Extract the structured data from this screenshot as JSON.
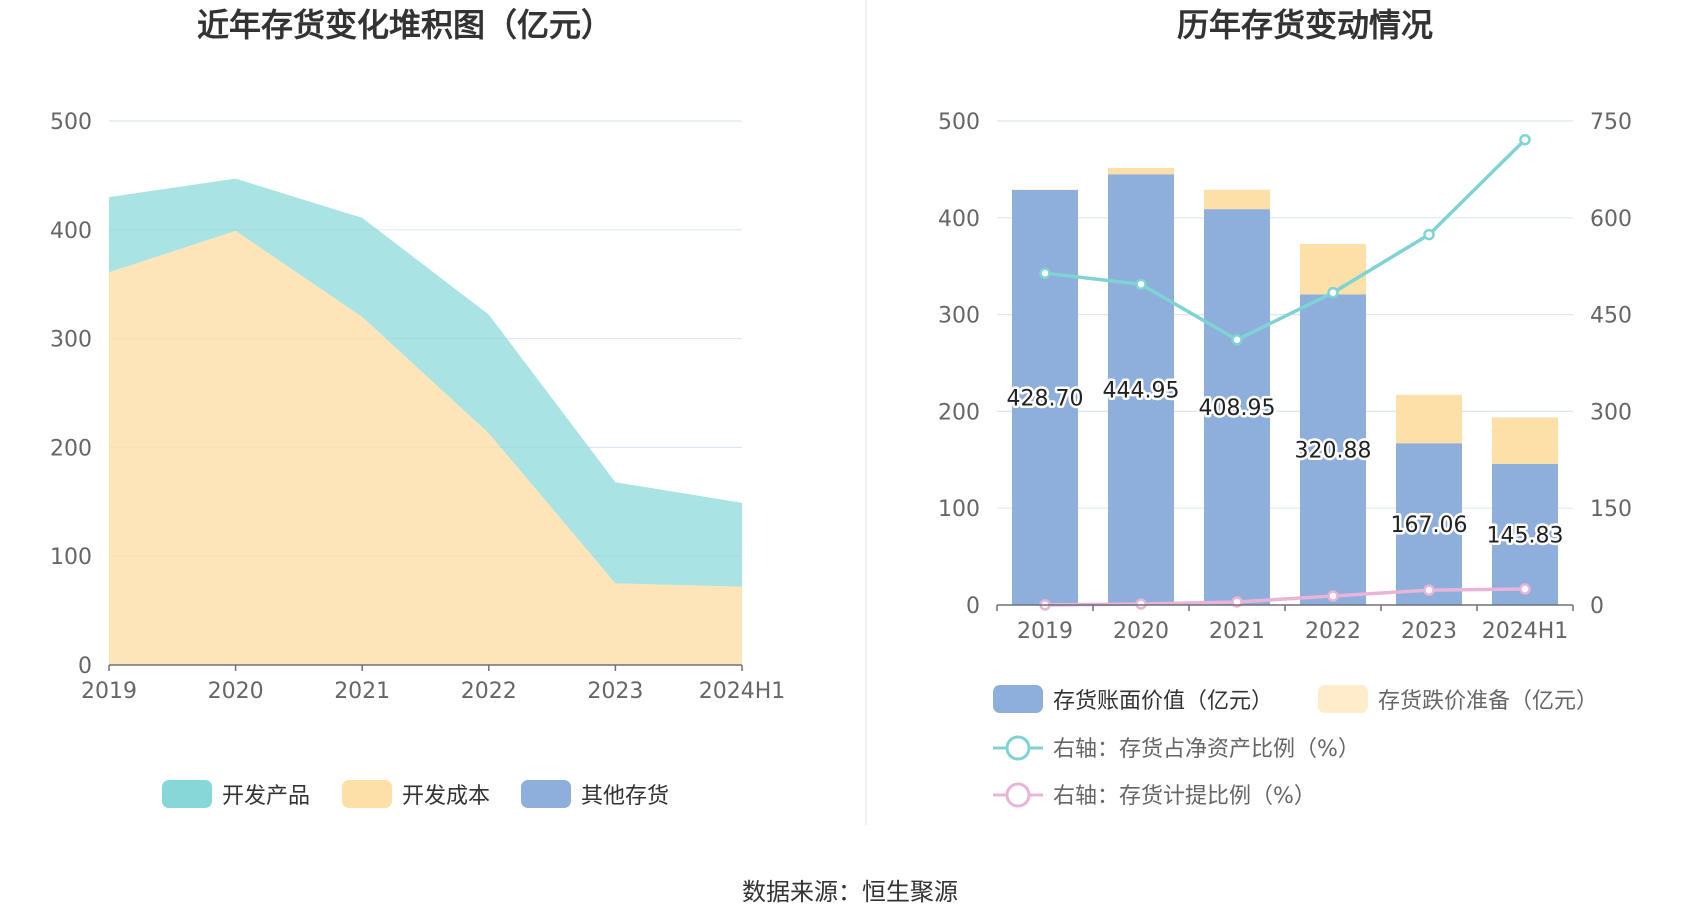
{
  "source_note": "数据来源：恒生聚源",
  "colors": {
    "teal": "#86d7d8",
    "peach": "#fddfa8",
    "blue": "#8eaedb",
    "line_teal": "#7fd3d5",
    "line_pink": "#e8b4d8",
    "grid": "#dfe6f3",
    "axis": "#6e7079"
  },
  "chart_data": [
    {
      "type": "area",
      "stacked": true,
      "title": "近年存货变化堆积图（亿元）",
      "categories": [
        "2019",
        "2020",
        "2021",
        "2022",
        "2023",
        "2024H1"
      ],
      "ylim": [
        0,
        500
      ],
      "yticks": [
        "0",
        "100",
        "200",
        "300",
        "400",
        "500"
      ],
      "grid": true,
      "legend_position": "bottom",
      "series": [
        {
          "name": "开发成本",
          "color": "#fddfa8",
          "values": [
            361,
            399,
            320,
            213,
            75,
            72
          ]
        },
        {
          "name": "开发产品",
          "color": "#86d7d8",
          "values": [
            69,
            48,
            91,
            109,
            93,
            77
          ]
        },
        {
          "name": "其他存货",
          "color": "#8eaedb",
          "values": [
            0,
            0,
            0,
            0,
            0,
            0
          ]
        }
      ],
      "legend": [
        {
          "name": "开发产品",
          "color": "#86d7d8"
        },
        {
          "name": "开发成本",
          "color": "#fddfa8"
        },
        {
          "name": "其他存货",
          "color": "#8eaedb"
        }
      ]
    },
    {
      "type": "bar",
      "stacked": true,
      "title": "历年存货变动情况",
      "categories": [
        "2019",
        "2020",
        "2021",
        "2022",
        "2023",
        "2024H1"
      ],
      "ylim": [
        0,
        500
      ],
      "yticks": [
        "0",
        "100",
        "200",
        "300",
        "400",
        "500"
      ],
      "y2lim": [
        0,
        750
      ],
      "y2ticks": [
        "0",
        "150",
        "300",
        "450",
        "600",
        "750"
      ],
      "grid": true,
      "legend_position": "bottom",
      "series": [
        {
          "name": "存货账面价值（亿元）",
          "color": "#8eaedb",
          "axis": "left",
          "kind": "bar",
          "values": [
            428.7,
            444.95,
            408.95,
            320.88,
            167.06,
            145.83
          ],
          "labels": [
            "428.70",
            "444.95",
            "408.95",
            "320.88",
            "167.06",
            "145.83"
          ]
        },
        {
          "name": "存货跌价准备（亿元）",
          "color": "#fddfa8",
          "axis": "left",
          "kind": "bar",
          "values": [
            0.5,
            6.5,
            20.0,
            52.0,
            50.0,
            48.0
          ]
        },
        {
          "name": "右轴：存货占净资产比例（%）",
          "color": "#7fd3d5",
          "axis": "right",
          "kind": "line",
          "values": [
            514,
            497,
            411,
            484,
            574,
            721
          ]
        },
        {
          "name": "右轴：存货计提比例（%）",
          "color": "#e8b4d8",
          "axis": "right",
          "kind": "line",
          "values": [
            0.1,
            1.5,
            4.7,
            13.9,
            23.0,
            24.8
          ]
        }
      ]
    }
  ]
}
